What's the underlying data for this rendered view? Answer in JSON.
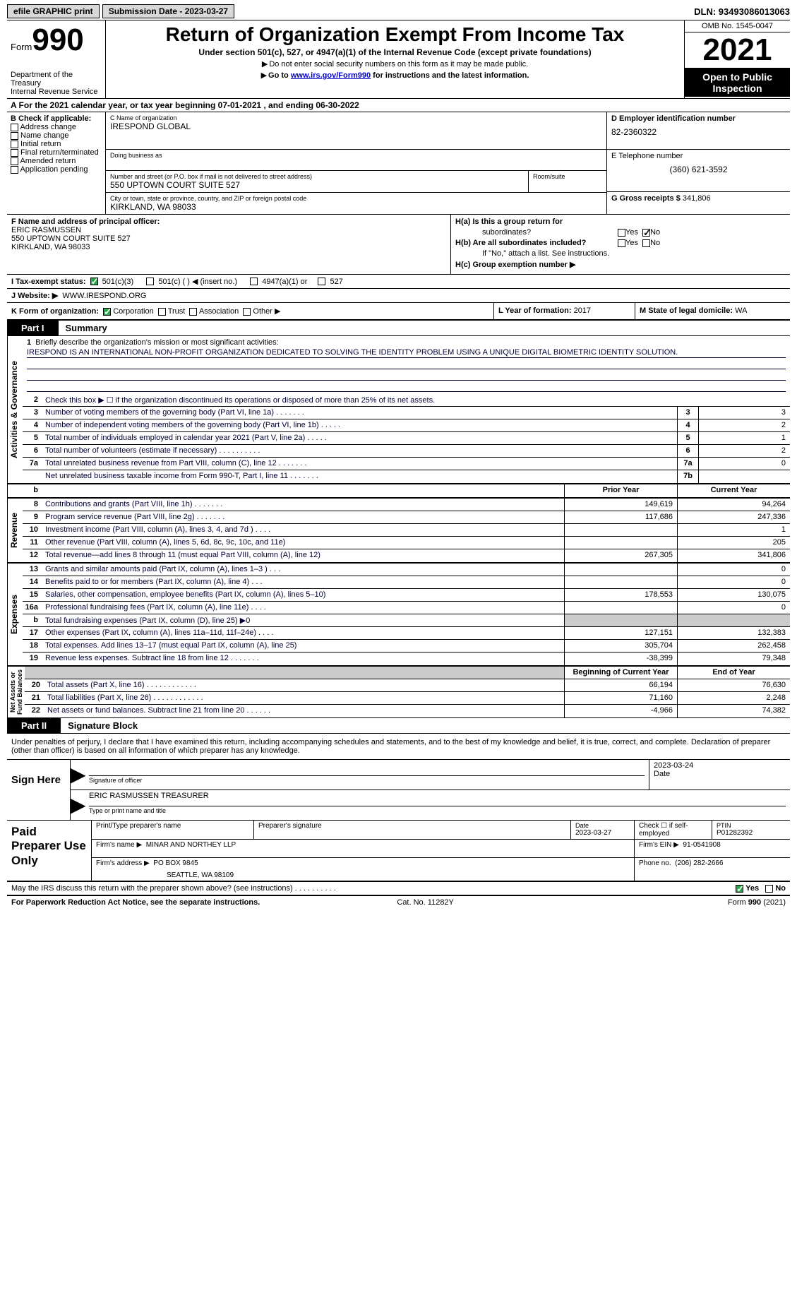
{
  "topbar": {
    "efile": "efile GRAPHIC print",
    "submission": "Submission Date - 2023-03-27",
    "dln": "DLN: 93493086013063"
  },
  "header": {
    "form_word": "Form",
    "form_num": "990",
    "dept1": "Department of the Treasury",
    "dept2": "Internal Revenue Service",
    "title": "Return of Organization Exempt From Income Tax",
    "sub": "Under section 501(c), 527, or 4947(a)(1) of the Internal Revenue Code (except private foundations)",
    "sub2": "Do not enter social security numbers on this form as it may be made public.",
    "sub3_prefix": "Go to ",
    "sub3_link": "www.irs.gov/Form990",
    "sub3_suffix": " for instructions and the latest information.",
    "omb": "OMB No. 1545-0047",
    "year": "2021",
    "open1": "Open to Public",
    "open2": "Inspection"
  },
  "lineA": "A For the 2021 calendar year, or tax year beginning 07-01-2021   , and ending 06-30-2022",
  "B": {
    "label": "B Check if applicable:",
    "opts": [
      "Address change",
      "Name change",
      "Initial return",
      "Final return/terminated",
      "Amended return",
      "Application pending"
    ]
  },
  "C": {
    "name_label": "C Name of organization",
    "name": "IRESPOND GLOBAL",
    "dba_label": "Doing business as",
    "dba": "",
    "street_label": "Number and street (or P.O. box if mail is not delivered to street address)",
    "room_label": "Room/suite",
    "street": "550 UPTOWN COURT SUITE 527",
    "city_label": "City or town, state or province, country, and ZIP or foreign postal code",
    "city": "KIRKLAND, WA  98033"
  },
  "D": {
    "label": "D Employer identification number",
    "val": "82-2360322"
  },
  "E": {
    "label": "E Telephone number",
    "val": "(360) 621-3592"
  },
  "G": {
    "label": "G Gross receipts $",
    "val": "341,806"
  },
  "F": {
    "label": "F  Name and address of principal officer:",
    "name": "ERIC RASMUSSEN",
    "addr1": "550 UPTOWN COURT SUITE 527",
    "addr2": "KIRKLAND, WA  98033"
  },
  "H": {
    "a": "H(a)  Is this a group return for",
    "a2": "subordinates?",
    "b": "H(b)  Are all subordinates included?",
    "bnote": "If \"No,\" attach a list. See instructions.",
    "c": "H(c)  Group exemption number ▶",
    "yes": "Yes",
    "no": "No"
  },
  "I": {
    "label": "I    Tax-exempt status:",
    "o1": "501(c)(3)",
    "o2": "501(c) (  ) ◀ (insert no.)",
    "o3": "4947(a)(1) or",
    "o4": "527"
  },
  "J": {
    "label": "J    Website: ▶",
    "val": "WWW.IRESPOND.ORG"
  },
  "K": {
    "label": "K Form of organization:",
    "o1": "Corporation",
    "o2": "Trust",
    "o3": "Association",
    "o4": "Other ▶"
  },
  "L": {
    "label": "L Year of formation:",
    "val": "2017"
  },
  "M": {
    "label": "M State of legal domicile:",
    "val": "WA"
  },
  "part1": {
    "tab": "Part I",
    "title": "Summary"
  },
  "summary": {
    "s1": {
      "label": "Briefly describe the organization's mission or most significant activities:",
      "text": "IRESPOND IS AN INTERNATIONAL NON-PROFIT ORGANIZATION DEDICATED TO SOLVING THE IDENTITY PROBLEM USING A UNIQUE DIGITAL BIOMETRIC IDENTITY SOLUTION."
    },
    "s2": "Check this box ▶ ☐  if the organization discontinued its operations or disposed of more than 25% of its net assets.",
    "rows_simple": [
      {
        "n": "3",
        "d": "Number of voting members of the governing body (Part VI, line 1a)  .  .  .  .  .  .  .",
        "b": "3",
        "v": "3"
      },
      {
        "n": "4",
        "d": "Number of independent voting members of the governing body (Part VI, line 1b)  .  .  .  .  .",
        "b": "4",
        "v": "2"
      },
      {
        "n": "5",
        "d": "Total number of individuals employed in calendar year 2021 (Part V, line 2a)  .  .  .  .  .",
        "b": "5",
        "v": "1"
      },
      {
        "n": "6",
        "d": "Total number of volunteers (estimate if necessary)   .  .  .  .  .  .  .  .  .  .",
        "b": "6",
        "v": "2"
      },
      {
        "n": "7a",
        "d": "Total unrelated business revenue from Part VIII, column (C), line 12   .  .  .  .  .  .  .",
        "b": "7a",
        "v": "0"
      },
      {
        "n": "",
        "d": "Net unrelated business taxable income from Form 990-T, Part I, line 11  .  .  .  .  .  .  .",
        "b": "7b",
        "v": ""
      }
    ],
    "hdr_prior": "Prior Year",
    "hdr_curr": "Current Year",
    "revenue": [
      {
        "n": "8",
        "d": "Contributions and grants (Part VIII, line 1h)   .  .  .  .  .  .  .",
        "p": "149,619",
        "c": "94,264"
      },
      {
        "n": "9",
        "d": "Program service revenue (Part VIII, line 2g)   .  .  .  .  .  .  .",
        "p": "117,686",
        "c": "247,336"
      },
      {
        "n": "10",
        "d": "Investment income (Part VIII, column (A), lines 3, 4, and 7d )   .  .  .  .",
        "p": "",
        "c": "1"
      },
      {
        "n": "11",
        "d": "Other revenue (Part VIII, column (A), lines 5, 6d, 8c, 9c, 10c, and 11e)",
        "p": "",
        "c": "205"
      },
      {
        "n": "12",
        "d": "Total revenue—add lines 8 through 11 (must equal Part VIII, column (A), line 12)",
        "p": "267,305",
        "c": "341,806"
      }
    ],
    "expenses": [
      {
        "n": "13",
        "d": "Grants and similar amounts paid (Part IX, column (A), lines 1–3 )  .  .  .",
        "p": "",
        "c": "0"
      },
      {
        "n": "14",
        "d": "Benefits paid to or for members (Part IX, column (A), line 4)  .  .  .",
        "p": "",
        "c": "0"
      },
      {
        "n": "15",
        "d": "Salaries, other compensation, employee benefits (Part IX, column (A), lines 5–10)",
        "p": "178,553",
        "c": "130,075"
      },
      {
        "n": "16a",
        "d": "Professional fundraising fees (Part IX, column (A), line 11e)  .  .  .  .",
        "p": "",
        "c": "0"
      },
      {
        "n": "b",
        "d": "Total fundraising expenses (Part IX, column (D), line 25) ▶0",
        "p": "GRAY",
        "c": "GRAY"
      },
      {
        "n": "17",
        "d": "Other expenses (Part IX, column (A), lines 11a–11d, 11f–24e)  .  .  .  .",
        "p": "127,151",
        "c": "132,383"
      },
      {
        "n": "18",
        "d": "Total expenses. Add lines 13–17 (must equal Part IX, column (A), line 25)",
        "p": "305,704",
        "c": "262,458"
      },
      {
        "n": "19",
        "d": "Revenue less expenses. Subtract line 18 from line 12  .  .  .  .  .  .  .",
        "p": "-38,399",
        "c": "79,348"
      }
    ],
    "hdr_begin": "Beginning of Current Year",
    "hdr_end": "End of Year",
    "netassets": [
      {
        "n": "20",
        "d": "Total assets (Part X, line 16)  .  .  .  .  .  .  .  .  .  .  .  .",
        "p": "66,194",
        "c": "76,630"
      },
      {
        "n": "21",
        "d": "Total liabilities (Part X, line 26)  .  .  .  .  .  .  .  .  .  .  .  .",
        "p": "71,160",
        "c": "2,248"
      },
      {
        "n": "22",
        "d": "Net assets or fund balances. Subtract line 21 from line 20  .  .  .  .  .  .",
        "p": "-4,966",
        "c": "74,382"
      }
    ],
    "vlab_ag": "Activities & Governance",
    "vlab_rev": "Revenue",
    "vlab_exp": "Expenses",
    "vlab_net": "Net Assets or\nFund Balances"
  },
  "part2": {
    "tab": "Part II",
    "title": "Signature Block"
  },
  "sig": {
    "decl": "Under penalties of perjury, I declare that I have examined this return, including accompanying schedules and statements, and to the best of my knowledge and belief, it is true, correct, and complete. Declaration of preparer (other than officer) is based on all information of which preparer has any knowledge.",
    "sign_here": "Sign Here",
    "sig_officer": "Signature of officer",
    "date": "Date",
    "date_val": "2023-03-24",
    "name_val": "ERIC RASMUSSEN  TREASURER",
    "name_label": "Type or print name and title"
  },
  "prep": {
    "label": "Paid Preparer Use Only",
    "r1c1": "Print/Type preparer's name",
    "r1c2": "Preparer's signature",
    "r1c3l": "Date",
    "r1c3v": "2023-03-27",
    "r1c4": "Check ☐ if self-employed",
    "r1c5l": "PTIN",
    "r1c5v": "P01282392",
    "r2c1": "Firm's name    ▶",
    "r2c1v": "MINAR AND NORTHEY LLP",
    "r2c2": "Firm's EIN ▶",
    "r2c2v": "91-0541908",
    "r3c1": "Firm's address ▶",
    "r3c1v": "PO BOX 9845",
    "r3c1v2": "SEATTLE, WA  98109",
    "r3c2": "Phone no.",
    "r3c2v": "(206) 282-2666"
  },
  "discuss": {
    "q": "May the IRS discuss this return with the preparer shown above? (see instructions)   .  .  .  .  .  .  .  .  .  .",
    "yes": "Yes",
    "no": "No"
  },
  "footer": {
    "l": "For Paperwork Reduction Act Notice, see the separate instructions.",
    "m": "Cat. No. 11282Y",
    "r": "Form 990 (2021)"
  }
}
